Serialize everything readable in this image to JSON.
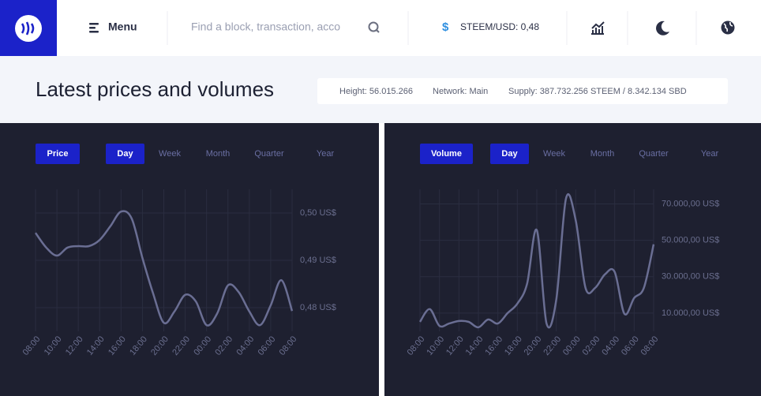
{
  "header": {
    "menu": "Menu",
    "search": "Find a block, transaction, acco",
    "currency_symbol": "$",
    "price": "STEEM/USD: 0,48"
  },
  "title": "Latest prices and volumes",
  "stats": [
    "Height: 56.015.266",
    "Network: Main",
    "Supply: 387.732.256 STEEM / 8.342.134 SBD"
  ],
  "charts": [
    {
      "type": "line",
      "button": "Price",
      "periods": [
        "Day",
        "Week",
        "Month",
        "Quarter",
        "Year"
      ],
      "categories": [
        "08:00",
        null,
        "10:00",
        null,
        "12:00",
        null,
        "14:00",
        null,
        "16:00",
        null,
        "18:00",
        null,
        "20:00",
        null,
        "22:00",
        null,
        "00:00",
        null,
        "02:00",
        null,
        "04:00",
        null,
        "06:00",
        null,
        "08:00"
      ],
      "values": [
        0.4958,
        0.4927,
        0.491,
        0.4927,
        0.493,
        0.493,
        0.4943,
        0.4972,
        0.5003,
        0.4988,
        0.4905,
        0.483,
        0.4768,
        0.4792,
        0.4827,
        0.4813,
        0.4763,
        0.4788,
        0.4847,
        0.4833,
        0.4792,
        0.4763,
        0.4805,
        0.4858,
        0.4793
      ],
      "color": "#6a6e93",
      "ylim": [
        0.475,
        0.505
      ],
      "yticks": [
        {
          "value": 0.48,
          "label": "0,48 US$"
        },
        {
          "value": 0.49,
          "label": "0,49 US$"
        },
        {
          "value": 0.5,
          "label": "0,50 US$"
        }
      ],
      "grid": true
    },
    {
      "type": "line",
      "button": "Volume",
      "periods": [
        "Day",
        "Week",
        "Month",
        "Quarter",
        "Year"
      ],
      "categories": [
        "08:00",
        null,
        "10:00",
        null,
        "12:00",
        null,
        "14:00",
        null,
        "16:00",
        null,
        "18:00",
        null,
        "20:00",
        null,
        "22:00",
        null,
        "00:00",
        null,
        "02:00",
        null,
        "04:00",
        null,
        "06:00",
        null,
        "08:00"
      ],
      "values": [
        5200,
        12200,
        3000,
        4300,
        5700,
        5200,
        2200,
        6500,
        4300,
        10000,
        15200,
        26100,
        55600,
        4300,
        17400,
        73000,
        60900,
        23900,
        23900,
        31300,
        32600,
        9600,
        18300,
        23900,
        47800
      ],
      "color": "#6a6e93",
      "ylim": [
        0,
        78000
      ],
      "yticks": [
        {
          "value": 10000,
          "label": "10.000,00 US$"
        },
        {
          "value": 30000,
          "label": "30.000,00 US$"
        },
        {
          "value": 50000,
          "label": "50.000,00 US$"
        },
        {
          "value": 70000,
          "label": "70.000,00 US$"
        }
      ],
      "grid": true
    }
  ]
}
